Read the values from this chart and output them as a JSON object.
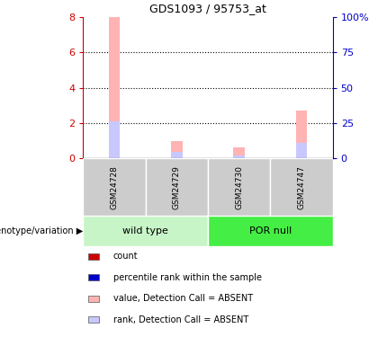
{
  "title": "GDS1093 / 95753_at",
  "samples": [
    "GSM24728",
    "GSM24729",
    "GSM24730",
    "GSM24747"
  ],
  "bar_pink_values": [
    8.0,
    1.0,
    0.6,
    2.7
  ],
  "bar_blue_values": [
    2.1,
    0.35,
    0.15,
    0.9
  ],
  "ylim_left": [
    0,
    8
  ],
  "ylim_right": [
    0,
    100
  ],
  "yticks_left": [
    0,
    2,
    4,
    6,
    8
  ],
  "yticks_right": [
    0,
    25,
    50,
    75,
    100
  ],
  "ytick_labels_right": [
    "0",
    "25",
    "50",
    "75",
    "100%"
  ],
  "left_axis_color": "#cc0000",
  "right_axis_color": "#0000cc",
  "bar_width": 0.18,
  "background_color": "#ffffff",
  "legend_items": [
    {
      "color": "#cc0000",
      "label": "count"
    },
    {
      "color": "#0000cc",
      "label": "percentile rank within the sample"
    },
    {
      "color": "#ffb3b3",
      "label": "value, Detection Call = ABSENT"
    },
    {
      "color": "#c8c8ff",
      "label": "rank, Detection Call = ABSENT"
    }
  ],
  "genotype_label": "genotype/variation",
  "wild_type_label": "wild type",
  "por_null_label": "POR null",
  "group_box_color_wt": "#c8f5c8",
  "group_box_color_por": "#44ee44",
  "gray_cell_color": "#cccccc"
}
